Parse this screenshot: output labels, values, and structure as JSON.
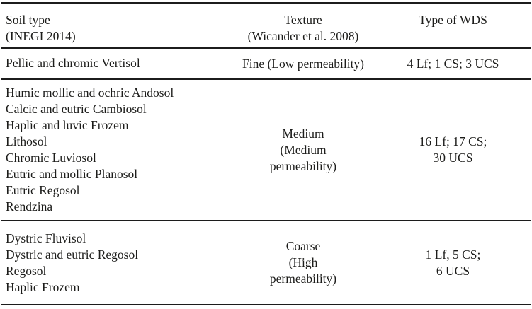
{
  "colors": {
    "background": "#ffffff",
    "text": "#1d1d1b",
    "rule": "#1c1c1c"
  },
  "table": {
    "header": {
      "soil_type": [
        "Soil type",
        "(INEGI 2014)"
      ],
      "texture": [
        "Texture",
        "(Wicander et al. 2008)"
      ],
      "wds": [
        "Type of WDS"
      ]
    },
    "rows": [
      {
        "soil_types": [
          "Pellic and chromic Vertisol"
        ],
        "texture_lines": [
          "Fine (Low permeability)"
        ],
        "wds_lines": [
          "4 Lf; 1 CS; 3 UCS"
        ]
      },
      {
        "soil_types": [
          "Humic mollic and ochric Andosol",
          "Calcic and eutric Cambiosol",
          "Haplic and luvic Frozem",
          "Lithosol",
          "Chromic Luviosol",
          "Eutric and mollic Planosol",
          "Eutric Regosol",
          "Rendzina"
        ],
        "texture_lines": [
          "Medium",
          "(Medium",
          "permeability)"
        ],
        "wds_lines": [
          "16 Lf; 17 CS;",
          "30 UCS"
        ]
      },
      {
        "soil_types": [
          "Dystric Fluvisol",
          "Dystric and eutric Regosol",
          "Regosol",
          "Haplic Frozem"
        ],
        "texture_lines": [
          "Coarse",
          "(High",
          "permeability)"
        ],
        "wds_lines": [
          "1 Lf, 5 CS;",
          "6 UCS"
        ]
      }
    ]
  }
}
